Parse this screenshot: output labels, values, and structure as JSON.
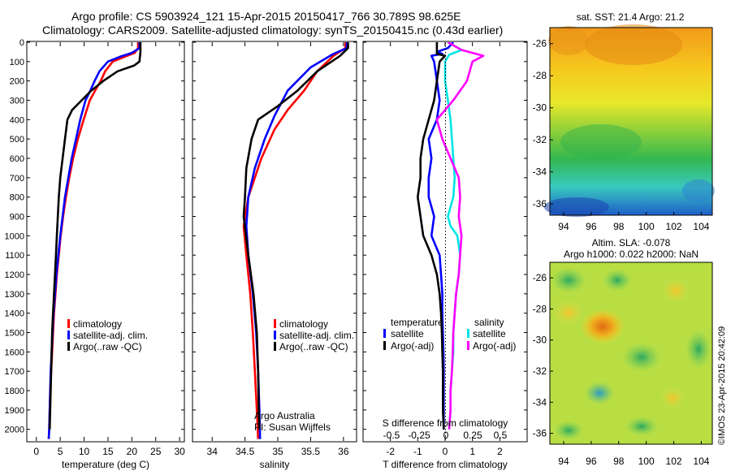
{
  "header": {
    "line1": "Argo profile: CS 5903924_121 15-Apr-2015 20150417_766 30.789S 98.625E",
    "line2": "Climatology: CARS2009. Satellite-adjusted climatology: synTS_20150415.nc (0.43d earlier)"
  },
  "colors": {
    "climatology": "#ff0000",
    "satellite": "#0000ff",
    "argo": "#000000",
    "sal_satellite": "#00e5e5",
    "sal_argo": "#ff00ff"
  },
  "chart_data": [
    {
      "type": "line",
      "xlabel": "temperature (deg C)",
      "xlim": [
        -2,
        31
      ],
      "xticks": [
        0,
        5,
        10,
        15,
        20,
        25,
        30
      ],
      "ylim": [
        0,
        2060
      ],
      "yticks": [
        0,
        100,
        200,
        300,
        400,
        500,
        600,
        700,
        800,
        900,
        1000,
        1100,
        1200,
        1300,
        1400,
        1500,
        1600,
        1700,
        1800,
        1900,
        2000
      ],
      "legend": [
        "climatology",
        "satellite-adj. clim.",
        "Argo(..raw -QC)"
      ],
      "series": [
        {
          "name": "climatology",
          "points": [
            [
              21.3,
              0
            ],
            [
              21.3,
              30
            ],
            [
              20.6,
              55
            ],
            [
              18.5,
              75
            ],
            [
              16.0,
              100
            ],
            [
              14.4,
              150
            ],
            [
              13.5,
              200
            ],
            [
              12.3,
              250
            ],
            [
              11.2,
              300
            ],
            [
              9.9,
              400
            ],
            [
              8.7,
              500
            ],
            [
              7.7,
              600
            ],
            [
              6.9,
              700
            ],
            [
              6.2,
              800
            ],
            [
              5.6,
              900
            ],
            [
              5.1,
              1000
            ],
            [
              4.7,
              1100
            ],
            [
              4.3,
              1200
            ],
            [
              4.0,
              1300
            ],
            [
              3.7,
              1400
            ],
            [
              3.5,
              1500
            ],
            [
              3.3,
              1600
            ],
            [
              3.1,
              1700
            ],
            [
              2.9,
              1800
            ],
            [
              2.8,
              1900
            ],
            [
              2.7,
              2000
            ],
            [
              2.6,
              2050
            ]
          ]
        },
        {
          "name": "satellite-adj. clim.",
          "points": [
            [
              21.6,
              0
            ],
            [
              21.6,
              30
            ],
            [
              20.0,
              55
            ],
            [
              17.5,
              75
            ],
            [
              15.0,
              100
            ],
            [
              13.2,
              150
            ],
            [
              12.2,
              200
            ],
            [
              11.3,
              250
            ],
            [
              10.3,
              300
            ],
            [
              9.2,
              400
            ],
            [
              8.3,
              500
            ],
            [
              7.4,
              600
            ],
            [
              6.7,
              700
            ],
            [
              6.0,
              800
            ],
            [
              5.5,
              900
            ],
            [
              5.0,
              1000
            ],
            [
              4.6,
              1100
            ],
            [
              4.2,
              1200
            ],
            [
              3.9,
              1300
            ],
            [
              3.6,
              1400
            ],
            [
              3.4,
              1500
            ],
            [
              3.2,
              1600
            ],
            [
              3.0,
              1700
            ],
            [
              2.9,
              1800
            ],
            [
              2.8,
              1900
            ],
            [
              2.7,
              2000
            ],
            [
              2.6,
              2050
            ]
          ]
        },
        {
          "name": "Argo(..raw -QC)",
          "points": [
            [
              21.8,
              0
            ],
            [
              21.8,
              50
            ],
            [
              21.6,
              100
            ],
            [
              20.5,
              120
            ],
            [
              17.0,
              150
            ],
            [
              14.0,
              200
            ],
            [
              11.5,
              250
            ],
            [
              9.5,
              300
            ],
            [
              7.5,
              350
            ],
            [
              6.5,
              400
            ],
            [
              6.0,
              500
            ],
            [
              5.5,
              600
            ],
            [
              5.0,
              700
            ],
            [
              4.7,
              800
            ],
            [
              4.5,
              900
            ],
            [
              4.3,
              1000
            ],
            [
              4.1,
              1100
            ],
            [
              3.9,
              1200
            ],
            [
              3.7,
              1300
            ],
            [
              3.5,
              1400
            ],
            [
              3.3,
              1500
            ],
            [
              3.2,
              1600
            ],
            [
              3.1,
              1700
            ],
            [
              3.0,
              1800
            ],
            [
              2.9,
              1900
            ],
            [
              2.8,
              2000
            ]
          ]
        }
      ]
    },
    {
      "type": "line",
      "xlabel": "salinity",
      "xlim": [
        33.7,
        36.2
      ],
      "xticks": [
        34,
        34.5,
        35,
        35.5,
        36
      ],
      "xtick_labels": [
        "34",
        "34.5",
        "35",
        "35.5",
        "36"
      ],
      "ylim": [
        0,
        2060
      ],
      "legend": [
        "climatology",
        "satellite-adj. clim.",
        "Argo(..raw -QC)"
      ],
      "annotation": [
        "Argo Australia",
        "PI: Susan Wijffels"
      ],
      "series": [
        {
          "name": "climatology",
          "points": [
            [
              36.03,
              0
            ],
            [
              36.03,
              30
            ],
            [
              35.85,
              70
            ],
            [
              35.6,
              150
            ],
            [
              35.4,
              250
            ],
            [
              35.15,
              350
            ],
            [
              34.95,
              450
            ],
            [
              34.75,
              600
            ],
            [
              34.55,
              800
            ],
            [
              34.48,
              950
            ],
            [
              34.52,
              1100
            ],
            [
              34.58,
              1300
            ],
            [
              34.62,
              1500
            ],
            [
              34.65,
              1700
            ],
            [
              34.68,
              1900
            ],
            [
              34.7,
              2050
            ]
          ]
        },
        {
          "name": "satellite-adj. clim.",
          "points": [
            [
              36.05,
              0
            ],
            [
              36.05,
              30
            ],
            [
              35.85,
              60
            ],
            [
              35.5,
              130
            ],
            [
              35.15,
              250
            ],
            [
              34.95,
              380
            ],
            [
              34.8,
              500
            ],
            [
              34.65,
              650
            ],
            [
              34.55,
              800
            ],
            [
              34.52,
              950
            ],
            [
              34.55,
              1100
            ],
            [
              34.62,
              1300
            ],
            [
              34.67,
              1500
            ],
            [
              34.7,
              1700
            ],
            [
              34.72,
              1900
            ],
            [
              34.73,
              2050
            ]
          ]
        },
        {
          "name": "Argo(..raw -QC)",
          "points": [
            [
              36.07,
              0
            ],
            [
              36.07,
              30
            ],
            [
              35.95,
              70
            ],
            [
              35.6,
              150
            ],
            [
              35.3,
              250
            ],
            [
              35.0,
              330
            ],
            [
              34.7,
              400
            ],
            [
              34.6,
              500
            ],
            [
              34.52,
              650
            ],
            [
              34.5,
              800
            ],
            [
              34.48,
              900
            ],
            [
              34.55,
              1100
            ],
            [
              34.63,
              1300
            ],
            [
              34.68,
              1500
            ],
            [
              34.7,
              1700
            ],
            [
              34.71,
              1900
            ],
            [
              34.72,
              2000
            ]
          ]
        }
      ]
    },
    {
      "type": "line",
      "xlabel": "T difference from climatology",
      "xlim": [
        -3,
        3
      ],
      "xticks": [
        -2,
        -1,
        0,
        1,
        2
      ],
      "xtick_labels": [
        "-2",
        "-1",
        "0",
        "1",
        "2"
      ],
      "top_axis_label": "S difference from climatology",
      "top_xtick_labels": [
        "-0.5",
        "-0.25",
        "0",
        "0.25",
        "0.5"
      ],
      "ylim": [
        0,
        2060
      ],
      "legend_headers": [
        "temperature",
        "salinity"
      ],
      "legend": [
        "satellite",
        "Argo(-adj)",
        "satellite",
        "Argo(-adj)"
      ],
      "series": [
        {
          "name": "satellite",
          "points": [
            [
              0.3,
              0
            ],
            [
              0.1,
              30
            ],
            [
              -0.3,
              50
            ],
            [
              -0.1,
              60
            ],
            [
              -0.5,
              70
            ],
            [
              -0.4,
              100
            ],
            [
              -0.3,
              200
            ],
            [
              -0.2,
              300
            ],
            [
              -0.3,
              400
            ],
            [
              -0.6,
              500
            ],
            [
              -0.5,
              600
            ],
            [
              -0.6,
              700
            ],
            [
              -0.6,
              800
            ],
            [
              -0.4,
              900
            ],
            [
              -0.5,
              1000
            ],
            [
              -0.2,
              1100
            ],
            [
              -0.15,
              1200
            ],
            [
              -0.1,
              1300
            ],
            [
              -0.1,
              1400
            ],
            [
              -0.08,
              1500
            ],
            [
              -0.06,
              1600
            ],
            [
              -0.05,
              1700
            ],
            [
              -0.05,
              1800
            ],
            [
              -0.05,
              1900
            ],
            [
              -0.05,
              2000
            ]
          ]
        },
        {
          "name": "Argo(-adj)",
          "points": [
            [
              -0.3,
              0
            ],
            [
              -0.3,
              60
            ],
            [
              0.0,
              70
            ],
            [
              -0.1,
              85
            ],
            [
              -0.2,
              100
            ],
            [
              -0.3,
              200
            ],
            [
              -0.4,
              300
            ],
            [
              -0.6,
              400
            ],
            [
              -0.8,
              500
            ],
            [
              -0.9,
              600
            ],
            [
              -0.9,
              700
            ],
            [
              -1.0,
              800
            ],
            [
              -0.9,
              900
            ],
            [
              -0.8,
              1000
            ],
            [
              -0.5,
              1100
            ],
            [
              -0.3,
              1200
            ],
            [
              -0.2,
              1300
            ],
            [
              -0.15,
              1400
            ],
            [
              -0.12,
              1500
            ],
            [
              -0.1,
              1600
            ],
            [
              -0.08,
              1700
            ],
            [
              -0.08,
              1800
            ],
            [
              -0.08,
              1900
            ],
            [
              -0.05,
              2000
            ]
          ]
        },
        {
          "name": "satellite",
          "points": [
            [
              0.1,
              0
            ],
            [
              0.6,
              40
            ],
            [
              0.15,
              65
            ],
            [
              0.0,
              100
            ],
            [
              0.0,
              200
            ],
            [
              0.1,
              300
            ],
            [
              0.2,
              400
            ],
            [
              0.25,
              500
            ],
            [
              0.3,
              600
            ],
            [
              0.35,
              700
            ],
            [
              0.3,
              800
            ],
            [
              0.1,
              900
            ],
            [
              0.2,
              950
            ],
            [
              0.45,
              1000
            ],
            [
              0.55,
              1100
            ],
            [
              0.5,
              1200
            ],
            [
              0.4,
              1300
            ],
            [
              0.35,
              1400
            ],
            [
              0.3,
              1500
            ],
            [
              0.3,
              1600
            ],
            [
              0.25,
              1700
            ],
            [
              0.2,
              1800
            ],
            [
              0.2,
              1900
            ],
            [
              0.15,
              2000
            ]
          ]
        },
        {
          "name": "Argo(-adj)",
          "points": [
            [
              0.1,
              0
            ],
            [
              0.6,
              40
            ],
            [
              1.4,
              70
            ],
            [
              1.0,
              100
            ],
            [
              0.8,
              200
            ],
            [
              0.3,
              300
            ],
            [
              -0.3,
              400
            ],
            [
              -0.1,
              500
            ],
            [
              0.2,
              600
            ],
            [
              0.5,
              700
            ],
            [
              0.55,
              800
            ],
            [
              0.5,
              900
            ],
            [
              0.6,
              1000
            ],
            [
              0.55,
              1100
            ],
            [
              0.5,
              1200
            ],
            [
              0.4,
              1300
            ],
            [
              0.35,
              1400
            ],
            [
              0.3,
              1500
            ],
            [
              0.28,
              1600
            ],
            [
              0.25,
              1700
            ],
            [
              0.2,
              1800
            ],
            [
              0.2,
              1900
            ],
            [
              0.15,
              2000
            ]
          ]
        }
      ]
    },
    {
      "type": "heatmap",
      "title": "sat. SST: 21.4 Argo: 21.2",
      "xticks": [
        94,
        96,
        98,
        100,
        102,
        104
      ],
      "yticks": [
        -26,
        -28,
        -30,
        -32,
        -34,
        -36
      ]
    },
    {
      "type": "heatmap",
      "title_line1": "Altim. SLA: -0.078",
      "title_line2": "Argo h1000: 0.022 h2000: NaN",
      "xticks": [
        94,
        96,
        98,
        100,
        102,
        104
      ],
      "yticks": [
        -26,
        -28,
        -30,
        -32,
        -34,
        -36
      ]
    }
  ],
  "footer": {
    "credit": "©IMOS 23-Apr-2015 20:42:09"
  }
}
